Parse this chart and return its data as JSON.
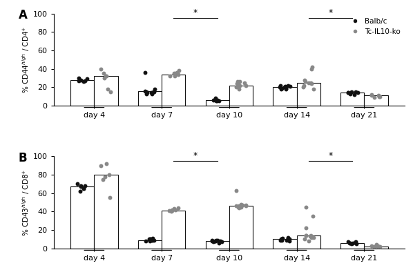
{
  "days": [
    "day 4",
    "day 7",
    "day 10",
    "day 14",
    "day 21"
  ],
  "panel_A": {
    "ylabel": "% CD44$^{high}$ / CD4$^{+}$",
    "bar_balbc": [
      28,
      16,
      6,
      20,
      14
    ],
    "bar_tcko": [
      32,
      34,
      22,
      25,
      11
    ],
    "dots_balbc": [
      [
        28,
        29,
        27,
        26,
        30,
        27
      ],
      [
        36,
        15,
        14,
        13,
        16,
        18,
        15,
        14,
        13,
        15
      ],
      [
        8,
        6,
        5,
        7,
        5,
        6,
        6,
        5
      ],
      [
        20,
        22,
        19,
        21,
        18,
        20,
        19,
        18,
        22,
        21
      ],
      [
        14,
        15,
        13,
        14,
        12,
        15,
        14
      ]
    ],
    "dots_tcko": [
      [
        32,
        40,
        15,
        35,
        18,
        30,
        32
      ],
      [
        35,
        32,
        38,
        36,
        34,
        35,
        32
      ],
      [
        22,
        24,
        26,
        20,
        18,
        22,
        24,
        25,
        26,
        22
      ],
      [
        25,
        28,
        40,
        22,
        18,
        24,
        26,
        20,
        42,
        25
      ],
      [
        11,
        10,
        12,
        9,
        11,
        10
      ]
    ],
    "sig_brackets": [
      [
        1,
        2,
        95,
        "*"
      ],
      [
        3,
        4,
        95,
        "*"
      ]
    ],
    "ylim": [
      0,
      100
    ]
  },
  "panel_B": {
    "ylabel": "% CD43$^{high}$ / CD8$^{+}$",
    "bar_balbc": [
      67,
      9,
      8,
      10,
      6
    ],
    "bar_tcko": [
      80,
      41,
      46,
      14,
      2
    ],
    "dots_balbc": [
      [
        65,
        68,
        70,
        62,
        67,
        68,
        65
      ],
      [
        9,
        10,
        8,
        9,
        11,
        10,
        9,
        8,
        9,
        10
      ],
      [
        8,
        7,
        9,
        6,
        8,
        9,
        7,
        8,
        9,
        8
      ],
      [
        10,
        9,
        11,
        10,
        8,
        12,
        9,
        10,
        11,
        9,
        10
      ],
      [
        6,
        7,
        5,
        6,
        7,
        6,
        5
      ]
    ],
    "dots_tcko": [
      [
        80,
        55,
        90,
        92,
        78,
        75
      ],
      [
        41,
        42,
        44,
        40,
        43,
        42,
        41
      ],
      [
        46,
        47,
        45,
        48,
        44,
        46,
        63,
        47,
        45,
        46
      ],
      [
        14,
        35,
        22,
        10,
        8,
        12,
        14,
        13,
        12,
        45,
        14
      ],
      [
        2,
        3,
        2,
        4,
        3,
        2
      ]
    ],
    "sig_brackets": [
      [
        1,
        2,
        95,
        "*"
      ],
      [
        3,
        4,
        95,
        "*"
      ]
    ],
    "ylim": [
      0,
      100
    ]
  },
  "color_balbc": "#111111",
  "color_tcko": "#888888",
  "bar_color": "#ffffff",
  "bar_edge": "#111111",
  "dot_size": 18,
  "bar_width": 0.35
}
